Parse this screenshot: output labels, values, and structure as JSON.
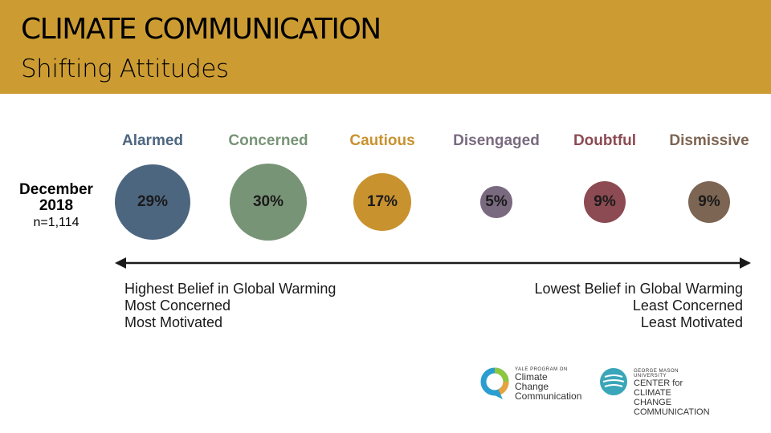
{
  "header": {
    "title": "CLIMATE COMMUNICATION",
    "subtitle": "Shifting Attitudes",
    "background": "#cc9c33"
  },
  "chart_data": {
    "type": "bubble",
    "categories": [
      "Alarmed",
      "Concerned",
      "Cautious",
      "Disengaged",
      "Doubtful",
      "Dismissive"
    ],
    "series": [
      {
        "name": "December 2018",
        "values": [
          29,
          30,
          17,
          5,
          9,
          9
        ],
        "labels": [
          "29%",
          "30%",
          "17%",
          "5%",
          "9%",
          "9%"
        ]
      }
    ],
    "colors": [
      "#4d6680",
      "#789477",
      "#c8922f",
      "#7a6a80",
      "#8c4a52",
      "#7d6553"
    ],
    "row_label": "December 2018",
    "sample_size": "n=1,114",
    "axis": {
      "left_lines": [
        "Highest Belief in Global Warming",
        "Most Concerned",
        "Most Motivated"
      ],
      "right_lines": [
        "Lowest Belief in Global Warming",
        "Least Concerned",
        "Least Motivated"
      ]
    }
  },
  "logos": {
    "yale": {
      "small": "YALE PROGRAM ON",
      "line1": "Climate Change",
      "line2": "Communication"
    },
    "gmu": {
      "small": "GEORGE MASON UNIVERSITY",
      "line1": "CENTER for CLIMATE CHANGE",
      "line2": "COMMUNICATION"
    }
  }
}
